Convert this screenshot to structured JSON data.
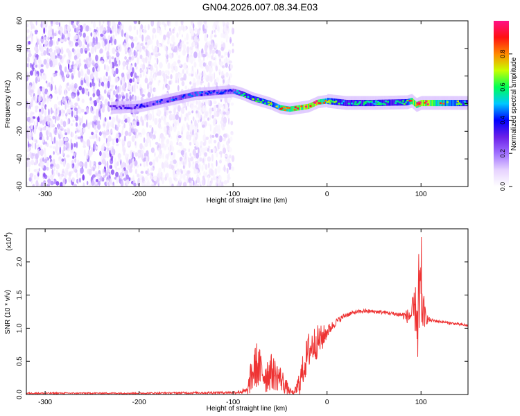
{
  "title": "GN04.2026.007.08.34.E03",
  "colors": {
    "snr_line": "#ee3333",
    "frame": "#000000",
    "background": "#ffffff",
    "colormap": [
      "#ffffff",
      "#e6d2ff",
      "#a070ff",
      "#6a1fe8",
      "#0000ff",
      "#00c8ff",
      "#00ff55",
      "#c8ff00",
      "#ff8800",
      "#ff1111",
      "#ff1188"
    ]
  },
  "chart_data": [
    {
      "type": "heatmap",
      "title": "",
      "xlabel": "Height of straight line (km)",
      "ylabel": "Frequency (Hz)",
      "xlim": [
        -320,
        150
      ],
      "ylim": [
        -60,
        60
      ],
      "xticks": [
        -300,
        -200,
        -100,
        0,
        100
      ],
      "xtick_labels": [
        "-300",
        "-200",
        "-100",
        "0",
        "100"
      ],
      "yticks": [
        -60,
        -40,
        -20,
        0,
        20,
        40,
        60
      ],
      "ytick_labels": [
        "-60",
        "-40",
        "-20",
        "0",
        "20",
        "40",
        "60"
      ],
      "colorbar": {
        "label": "Normalized spectral amplitude",
        "range": [
          0,
          1
        ],
        "ticks": [
          0.0,
          0.2,
          0.4,
          0.6,
          0.8
        ],
        "tick_labels": [
          "0.0",
          "0.2",
          "0.4",
          "0.6",
          "0.8"
        ]
      },
      "noise_region_x": [
        -320,
        -100
      ],
      "signal_ridge": {
        "x": [
          -230,
          -200,
          -180,
          -160,
          -140,
          -120,
          -100,
          -90,
          -80,
          -70,
          -60,
          -50,
          -40,
          -30,
          -20,
          -10,
          0,
          20,
          50,
          85,
          90,
          95,
          100,
          150
        ],
        "freq": [
          -3,
          -2,
          1,
          4,
          7,
          8,
          9,
          7,
          4,
          2,
          0,
          -3,
          -4,
          -3,
          -2,
          1,
          2,
          0.5,
          0.5,
          1,
          2,
          -1,
          0.5,
          0.5
        ],
        "amplitude": [
          0.2,
          0.25,
          0.3,
          0.35,
          0.35,
          0.3,
          0.3,
          0.45,
          0.5,
          0.55,
          0.6,
          0.7,
          0.75,
          0.85,
          0.9,
          0.9,
          0.6,
          0.45,
          0.45,
          0.5,
          0.9,
          0.8,
          0.9,
          0.45
        ]
      }
    },
    {
      "type": "line",
      "title": "",
      "xlabel": "Height of straight line (km)",
      "ylabel": "SNR (10 * v/v)",
      "y_scale_label": "(x10",
      "y_scale_exponent": "4",
      "y_scale_suffix": ")",
      "xlim": [
        -320,
        150
      ],
      "ylim": [
        0,
        2.5
      ],
      "xticks": [
        -300,
        -200,
        -100,
        0,
        100
      ],
      "xtick_labels": [
        "-300",
        "-200",
        "-100",
        "0",
        "100"
      ],
      "yticks": [
        0.0,
        0.5,
        1.0,
        1.5,
        2.0
      ],
      "ytick_labels": [
        "0.0",
        "0.5",
        "1.0",
        "1.5",
        "2.0"
      ],
      "series": [
        {
          "name": "SNR",
          "x": [
            -320,
            -200,
            -100,
            -85,
            -80,
            -75,
            -70,
            -65,
            -60,
            -55,
            -50,
            -45,
            -40,
            -35,
            -30,
            -25,
            -20,
            -15,
            -10,
            -5,
            0,
            10,
            20,
            30,
            40,
            50,
            60,
            70,
            80,
            85,
            90,
            95,
            98,
            100,
            102,
            105,
            110,
            120,
            130,
            140,
            150
          ],
          "y": [
            0.02,
            0.02,
            0.03,
            0.05,
            0.3,
            0.45,
            0.35,
            0.3,
            0.35,
            0.3,
            0.25,
            0.15,
            0.05,
            0.02,
            0.15,
            0.4,
            0.65,
            0.75,
            0.8,
            0.85,
            0.95,
            1.1,
            1.2,
            1.24,
            1.26,
            1.25,
            1.24,
            1.22,
            1.2,
            1.18,
            1.2,
            1.3,
            0.6,
            1.5,
            1.3,
            1.15,
            1.12,
            1.1,
            1.08,
            1.06,
            1.04
          ],
          "noise_amplitude": [
            0.01,
            0.01,
            0.02,
            0.05,
            0.3,
            0.35,
            0.3,
            0.3,
            0.28,
            0.25,
            0.2,
            0.15,
            0.05,
            0.03,
            0.2,
            0.25,
            0.3,
            0.28,
            0.25,
            0.2,
            0.1,
            0.05,
            0.04,
            0.03,
            0.03,
            0.03,
            0.03,
            0.03,
            0.05,
            0.1,
            0.2,
            0.4,
            0.6,
            0.8,
            0.35,
            0.1,
            0.03,
            0.02,
            0.02,
            0.02,
            0.02
          ]
        }
      ]
    }
  ]
}
